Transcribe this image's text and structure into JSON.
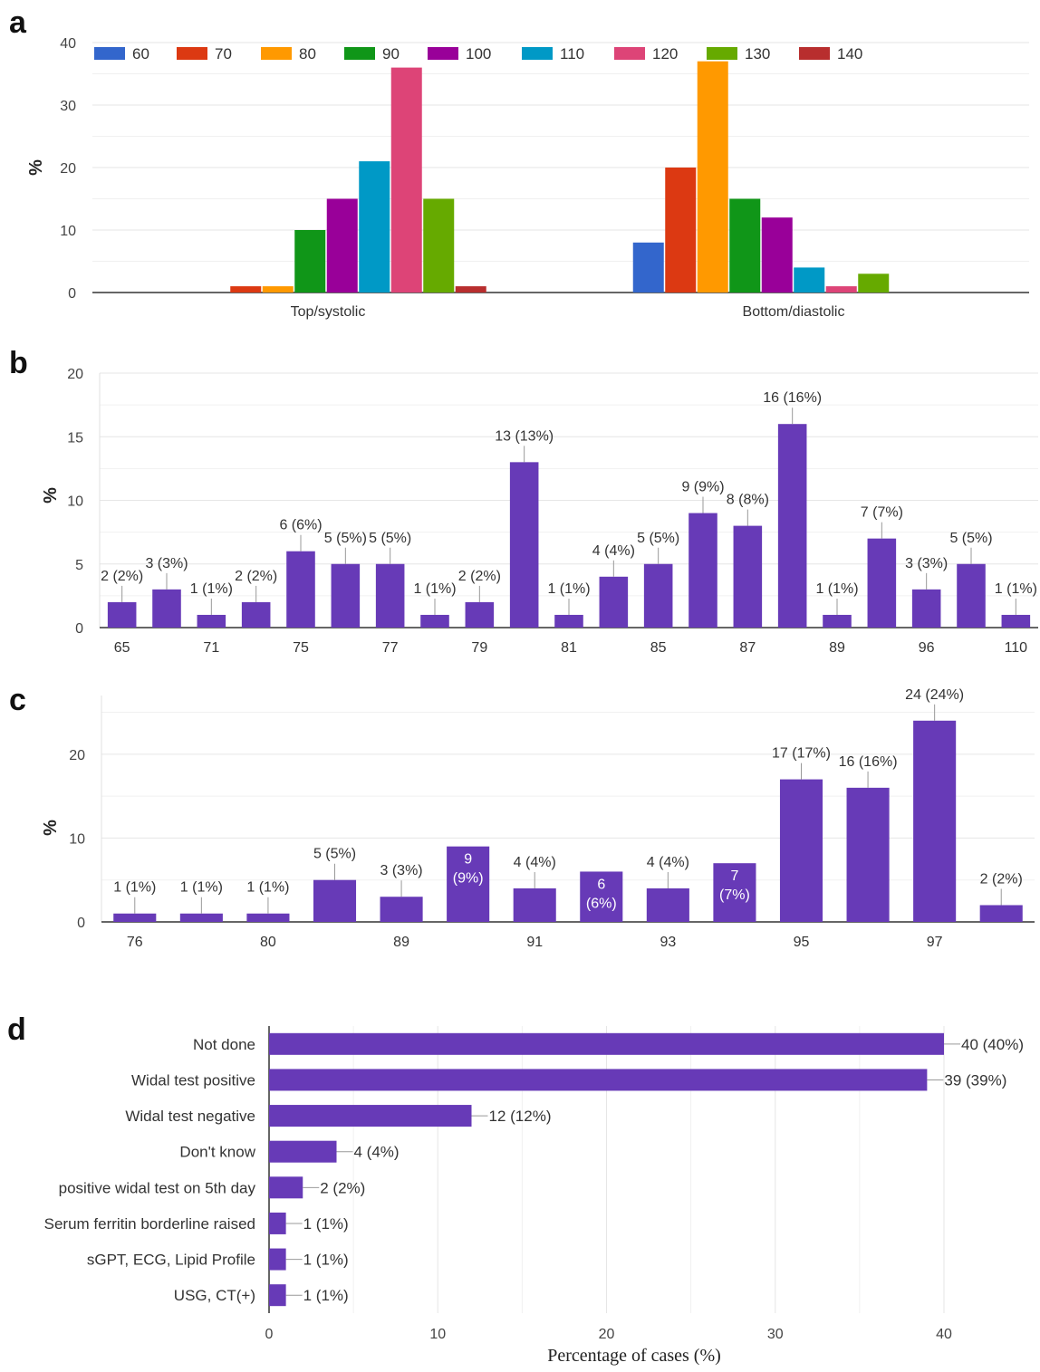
{
  "panels": [
    {
      "letter": "a",
      "ylabel": "%",
      "ylim": [
        0,
        40
      ],
      "yticks": [
        0,
        10,
        20,
        30,
        40
      ]
    },
    {
      "letter": "b",
      "ylabel": "%",
      "ylim": [
        0,
        20
      ],
      "yticks": [
        0,
        5,
        10,
        15,
        20
      ]
    },
    {
      "letter": "c",
      "ylabel": "%",
      "ylim": [
        0,
        27
      ],
      "yticks": [
        0,
        10,
        20
      ]
    },
    {
      "letter": "d",
      "xlabel": "Percentage of cases (%)",
      "xlim": [
        0,
        40
      ],
      "xticks": [
        0,
        10,
        20,
        30,
        40
      ]
    }
  ],
  "colors": {
    "bar_purple": "#673ab7",
    "grid": "#e6e6e6",
    "axis": "#333333",
    "text": "#222222"
  },
  "chart_data": [
    {
      "panel": "a",
      "type": "bar",
      "categories": [
        "Top/systolic",
        "Bottom/diastolic"
      ],
      "series": [
        {
          "name": "60",
          "color": "#3366cc",
          "values": [
            0,
            8
          ]
        },
        {
          "name": "70",
          "color": "#dc3912",
          "values": [
            1,
            20
          ]
        },
        {
          "name": "80",
          "color": "#ff9900",
          "values": [
            1,
            37
          ]
        },
        {
          "name": "90",
          "color": "#109618",
          "values": [
            10,
            15
          ]
        },
        {
          "name": "100",
          "color": "#990099",
          "values": [
            15,
            12
          ]
        },
        {
          "name": "110",
          "color": "#0099c6",
          "values": [
            21,
            4
          ]
        },
        {
          "name": "120",
          "color": "#dd4477",
          "values": [
            36,
            1
          ]
        },
        {
          "name": "130",
          "color": "#66aa00",
          "values": [
            15,
            3
          ]
        },
        {
          "name": "140",
          "color": "#b82e2e",
          "values": [
            1,
            0
          ]
        }
      ],
      "ylabel": "%",
      "ylim": [
        0,
        40
      ],
      "legend": "top"
    },
    {
      "panel": "b",
      "type": "bar",
      "categories": [
        "65",
        "",
        "71",
        "",
        "75",
        "",
        "77",
        "",
        "79",
        "",
        "81",
        "",
        "85",
        "",
        "87",
        "",
        "89",
        "",
        "96",
        "",
        "110"
      ],
      "values": [
        2,
        3,
        1,
        2,
        6,
        5,
        5,
        1,
        2,
        13,
        1,
        4,
        5,
        9,
        8,
        16,
        1,
        7,
        3,
        5,
        1
      ],
      "labels": [
        "2 (2%)",
        "3 (3%)",
        "1 (1%)",
        "2 (2%)",
        "6 (6%)",
        "5 (5%)",
        "5 (5%)",
        "1 (1%)",
        "2 (2%)",
        "13 (13%)",
        "1 (1%)",
        "4 (4%)",
        "5 (5%)",
        "9 (9%)",
        "8 (8%)",
        "16 (16%)",
        "1 (1%)",
        "7 (7%)",
        "3 (3%)",
        "5 (5%)",
        "1 (1%)"
      ],
      "ylabel": "%",
      "ylim": [
        0,
        20
      ]
    },
    {
      "panel": "c",
      "type": "bar",
      "categories": [
        "76",
        "",
        "80",
        "",
        "89",
        "",
        "91",
        "",
        "93",
        "",
        "95",
        "",
        "97",
        ""
      ],
      "values": [
        1,
        1,
        1,
        5,
        3,
        9,
        4,
        6,
        4,
        7,
        17,
        16,
        24,
        2
      ],
      "labels": [
        "1 (1%)",
        "1 (1%)",
        "1 (1%)",
        "5 (5%)",
        "3 (3%)",
        "9 (9%)",
        "4 (4%)",
        "6 (6%)",
        "4 (4%)",
        "7 (7%)",
        "17 (17%)",
        "16 (16%)",
        "24 (24%)",
        "2 (2%)"
      ],
      "inside_label": [
        false,
        false,
        false,
        false,
        false,
        true,
        false,
        true,
        false,
        true,
        false,
        false,
        false,
        false
      ],
      "ylabel": "%",
      "ylim": [
        0,
        27
      ]
    },
    {
      "panel": "d",
      "type": "bar",
      "orientation": "horizontal",
      "categories": [
        "Not done",
        "Widal test positive",
        "Widal test negative",
        "Don't know",
        "positive widal test on 5th day",
        "Serum ferritin borderline raised",
        "sGPT, ECG, Lipid Profile",
        "USG, CT(+)"
      ],
      "values": [
        40,
        39,
        12,
        4,
        2,
        1,
        1,
        1
      ],
      "labels": [
        "40 (40%)",
        "39 (39%)",
        "12 (12%)",
        "4 (4%)",
        "2 (2%)",
        "1 (1%)",
        "1 (1%)",
        "1 (1%)"
      ],
      "xlabel": "Percentage of cases (%)",
      "xlim": [
        0,
        40
      ]
    }
  ]
}
